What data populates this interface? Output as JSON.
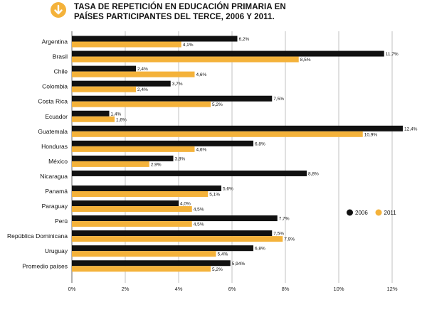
{
  "header": {
    "title_line1": "TASA DE REPETICIÓN EN EDUCACIÓN PRIMARIA EN",
    "title_line2": "PAÍSES PARTICIPANTES DEL TERCE, 2006 Y 2011."
  },
  "colors": {
    "series2006": "#111111",
    "series2011": "#f4b23a",
    "grid": "#999999",
    "badge": "#f4b23a"
  },
  "icons": {
    "badge": "arrow-down-icon"
  },
  "chart_data": {
    "type": "bar",
    "orientation": "horizontal",
    "title": "TASA DE REPETICIÓN EN EDUCACIÓN PRIMARIA EN PAÍSES PARTICIPANTES DEL TERCE, 2006 Y 2011.",
    "xlim": [
      0,
      13
    ],
    "xticks": [
      0,
      2,
      4,
      6,
      8,
      10,
      12
    ],
    "xtick_labels": [
      "0%",
      "2%",
      "4%",
      "6%",
      "8%",
      "10%",
      "12%"
    ],
    "legend_position": "right",
    "categories": [
      "Argentina",
      "Brasil",
      "Chile",
      "Colombia",
      "Costa Rica",
      "Ecuador",
      "Guatemala",
      "Honduras",
      "México",
      "Nicaragua",
      "Panamá",
      "Paraguay",
      "Perú",
      "República Dominicana",
      "Uruguay",
      "Promedio países"
    ],
    "series": [
      {
        "name": "2006",
        "values": [
          6.2,
          11.7,
          2.4,
          3.7,
          7.5,
          1.4,
          12.4,
          6.8,
          3.8,
          8.8,
          5.6,
          4.0,
          7.7,
          7.5,
          6.8,
          5.94
        ],
        "labels": [
          "6,2%",
          "11,7%",
          "2,4%",
          "3,7%",
          "7,5%",
          "1,4%",
          "12,4%",
          "6,8%",
          "3,8%",
          "8,8%",
          "5,6%",
          "4,0%",
          "7,7%",
          "7,5%",
          "6,8%",
          "5,94%"
        ]
      },
      {
        "name": "2011",
        "values": [
          4.1,
          8.5,
          4.6,
          2.4,
          5.2,
          1.6,
          10.9,
          4.6,
          2.9,
          null,
          5.1,
          4.5,
          4.5,
          7.9,
          5.4,
          5.2
        ],
        "labels": [
          "4,1%",
          "8,5%",
          "4,6%",
          "2,4%",
          "5,2%",
          "1,6%",
          "10,9%",
          "4,6%",
          "2,9%",
          null,
          "5,1%",
          "4,5%",
          "4,5%",
          "7,9%",
          "5,4%",
          "5,2%"
        ]
      }
    ]
  }
}
